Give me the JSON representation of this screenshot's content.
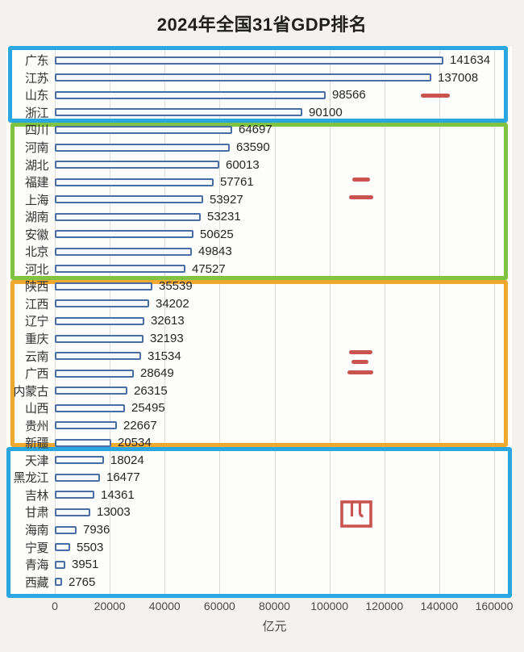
{
  "title": "2024年全国31省GDP排名",
  "chart_data": {
    "type": "bar",
    "orientation": "horizontal",
    "title": "2024年全国31省GDP排名",
    "xlabel": "亿元",
    "ylabel": "",
    "xlim": [
      0,
      160000
    ],
    "grid": true,
    "x_ticks": [
      "0",
      "20000",
      "40000",
      "60000",
      "80000",
      "100000",
      "120000",
      "140000",
      "160000"
    ],
    "categories": [
      "广东",
      "江苏",
      "山东",
      "浙江",
      "四川",
      "河南",
      "湖北",
      "福建",
      "上海",
      "湖南",
      "安徽",
      "北京",
      "河北",
      "陕西",
      "江西",
      "辽宁",
      "重庆",
      "云南",
      "广西",
      "内蒙古",
      "山西",
      "贵州",
      "新疆",
      "天津",
      "黑龙江",
      "吉林",
      "甘肃",
      "海南",
      "宁夏",
      "青海",
      "西藏"
    ],
    "values": [
      141634,
      137008,
      98566,
      90100,
      64697,
      63590,
      60013,
      57761,
      53927,
      53231,
      50625,
      49843,
      47527,
      35539,
      34202,
      32613,
      32193,
      31534,
      28649,
      26315,
      25495,
      22667,
      20534,
      18024,
      16477,
      14361,
      13003,
      7936,
      5503,
      3951,
      2765
    ],
    "bar_border_color": "#4a6da6",
    "bar_fill_color": "#f6f9fc",
    "annotation_color": "#c9534f",
    "tiers": [
      {
        "label": "一",
        "box_color": "#2aa6e0",
        "provinces": [
          "广东",
          "江苏",
          "山东",
          "浙江"
        ]
      },
      {
        "label": "二",
        "box_color": "#80c342",
        "provinces": [
          "四川",
          "河南",
          "湖北",
          "福建",
          "上海",
          "湖南",
          "安徽",
          "北京",
          "河北"
        ]
      },
      {
        "label": "三",
        "box_color": "#f0a92f",
        "provinces": [
          "陕西",
          "江西",
          "辽宁",
          "重庆",
          "云南",
          "广西",
          "内蒙古",
          "山西",
          "贵州",
          "新疆"
        ]
      },
      {
        "label": "四",
        "box_color": "#2aa6e0",
        "provinces": [
          "天津",
          "黑龙江",
          "吉林",
          "甘肃",
          "海南",
          "宁夏",
          "青海",
          "西藏"
        ]
      }
    ]
  }
}
